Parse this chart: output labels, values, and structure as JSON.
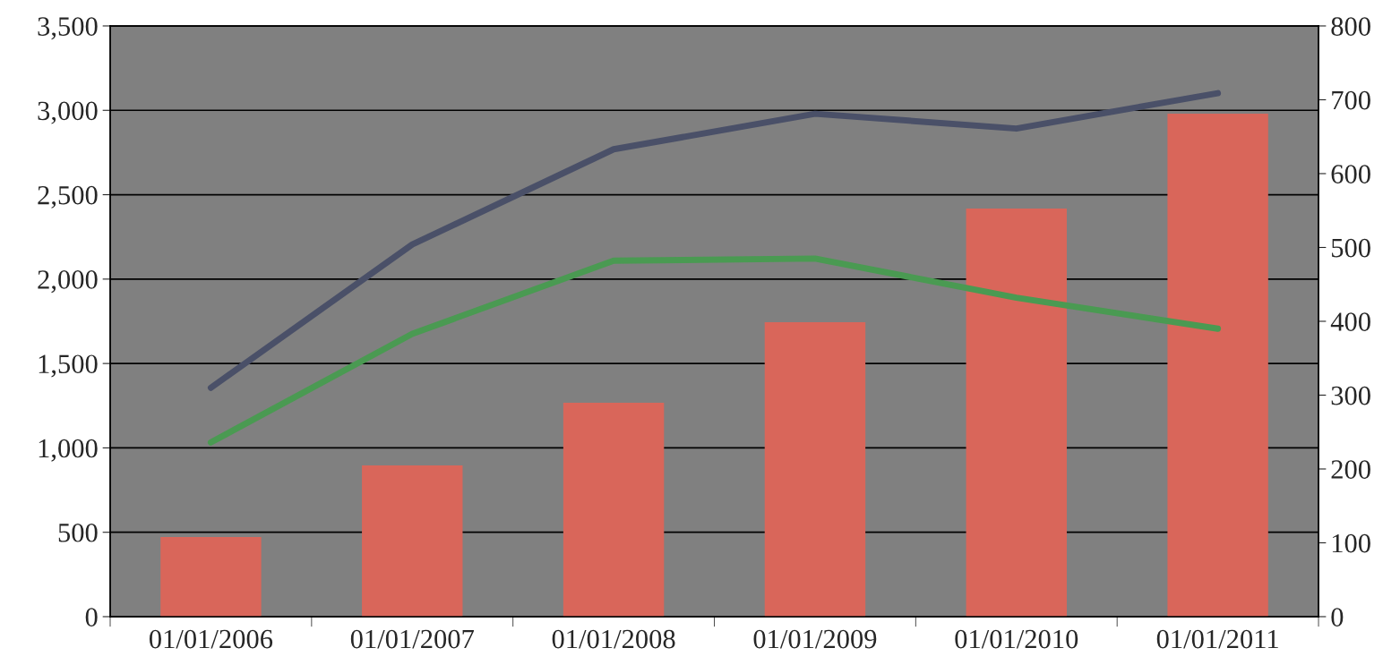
{
  "chart_data": {
    "type": "bar",
    "categories": [
      "01/01/2006",
      "01/01/2007",
      "01/01/2008",
      "01/01/2009",
      "01/01/2010",
      "01/01/2011"
    ],
    "series": [
      {
        "color": "#d9665a",
        "values": [
          472,
          896,
          1267,
          1744,
          2418,
          2980
        ]
      },
      {
        "type": "line",
        "axis": "y2",
        "color": "#4a5068",
        "values": [
          310,
          504,
          633,
          681,
          661,
          709
        ]
      },
      {
        "type": "line",
        "axis": "y2",
        "color": "#4a9a52",
        "values": [
          236,
          383,
          482,
          485,
          432,
          390
        ]
      }
    ],
    "ylim": [
      0,
      3500
    ],
    "yticks": [
      0,
      500,
      {
        "value": 1000,
        "label": "1,000"
      },
      {
        "value": 1500,
        "label": "1,500"
      },
      {
        "value": 2000,
        "label": "2,000"
      },
      {
        "value": 2500,
        "label": "2,500"
      },
      {
        "value": 3000,
        "label": "3,000"
      },
      {
        "value": 3500,
        "label": "3,500"
      }
    ],
    "y2lim": [
      0,
      800
    ],
    "y2ticks": [
      0,
      100,
      200,
      300,
      400,
      500,
      600,
      700,
      800
    ],
    "grid": "y"
  }
}
